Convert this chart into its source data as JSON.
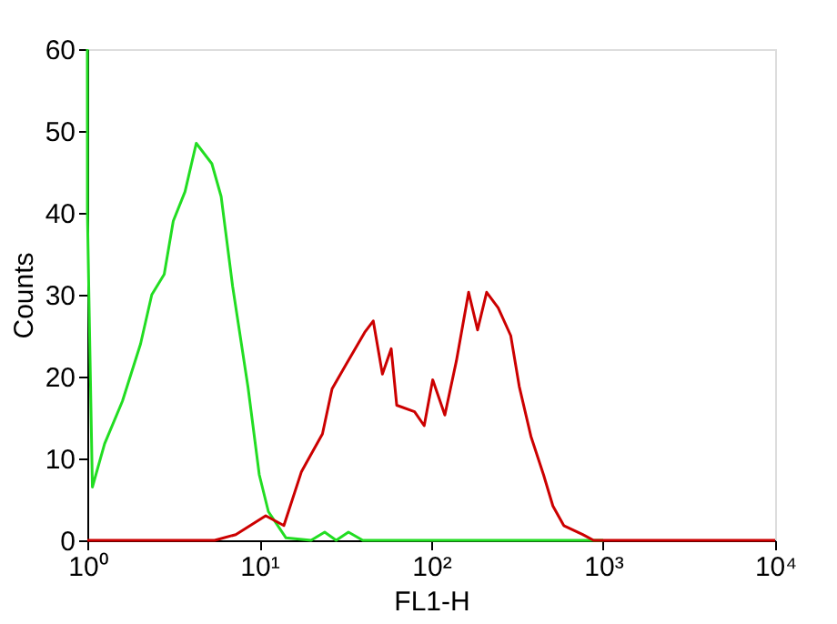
{
  "chart_data": {
    "type": "line",
    "xlabel": "FL1-H",
    "ylabel": "Counts",
    "log": "x",
    "xlim": [
      1,
      10000
    ],
    "xticks": [
      {
        "value": 1,
        "label": "10⁰"
      },
      {
        "value": 10,
        "label": "10¹"
      },
      {
        "value": 100,
        "label": "10²"
      },
      {
        "value": 1000,
        "label": "10³"
      },
      {
        "value": 10000,
        "label": "10⁴"
      }
    ],
    "ylim": [
      0,
      60
    ],
    "yticks": [
      0,
      10,
      20,
      30,
      40,
      50,
      60
    ],
    "series": [
      {
        "color": "#22dd22",
        "x": [
          1,
          1.001,
          1.07,
          1.26,
          1.6,
          2.04,
          2.37,
          2.8,
          3.16,
          3.7,
          4.3,
          5.3,
          6.0,
          7.0,
          8.6,
          10,
          11.3,
          14.3,
          20,
          24,
          28,
          33,
          40,
          100,
          1000
        ],
        "values": [
          60,
          40,
          6.5,
          11.8,
          17,
          24,
          30,
          32.5,
          39,
          42.6,
          48.5,
          46,
          42,
          31,
          18.7,
          8,
          3.5,
          0.3,
          0,
          1,
          0,
          1,
          0,
          0,
          0
        ]
      },
      {
        "color": "#cc0000",
        "x": [
          1,
          5.5,
          7.3,
          10.9,
          13.9,
          17.6,
          23.3,
          26.5,
          32,
          41,
          46,
          52,
          58.5,
          63,
          80,
          91,
          102,
          120,
          140,
          165,
          186,
          210,
          245,
          290,
          325,
          380,
          450,
          510,
          590,
          760,
          880,
          10000
        ],
        "values": [
          0,
          0,
          0.7,
          3,
          1.8,
          8.4,
          13,
          18.5,
          21.5,
          25.4,
          26.8,
          20.3,
          23.4,
          16.5,
          15.7,
          14,
          19.6,
          15.3,
          21.9,
          30.3,
          25.7,
          30.3,
          28.4,
          25,
          18.8,
          12.7,
          8,
          4.2,
          1.8,
          0.7,
          0,
          0
        ]
      }
    ]
  }
}
